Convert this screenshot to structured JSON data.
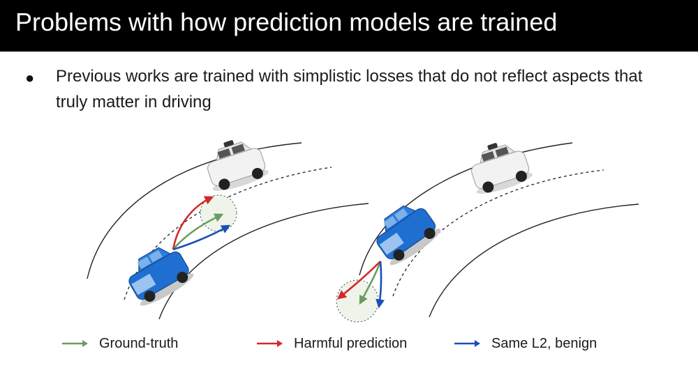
{
  "slide": {
    "title": "Problems with how prediction models are trained",
    "bullet": "Previous works are trained with simplistic losses that do not reflect aspects that truly matter in driving"
  },
  "legend": [
    {
      "label": "Ground-truth",
      "color": "#6a9c62"
    },
    {
      "label": "Harmful prediction",
      "color": "#d12a2a"
    },
    {
      "label": "Same L2, benign",
      "color": "#1a4fb8"
    }
  ],
  "colors": {
    "ego_car": "#1f6fd1",
    "other_car": "#f2f2f2",
    "road": "#222222"
  }
}
